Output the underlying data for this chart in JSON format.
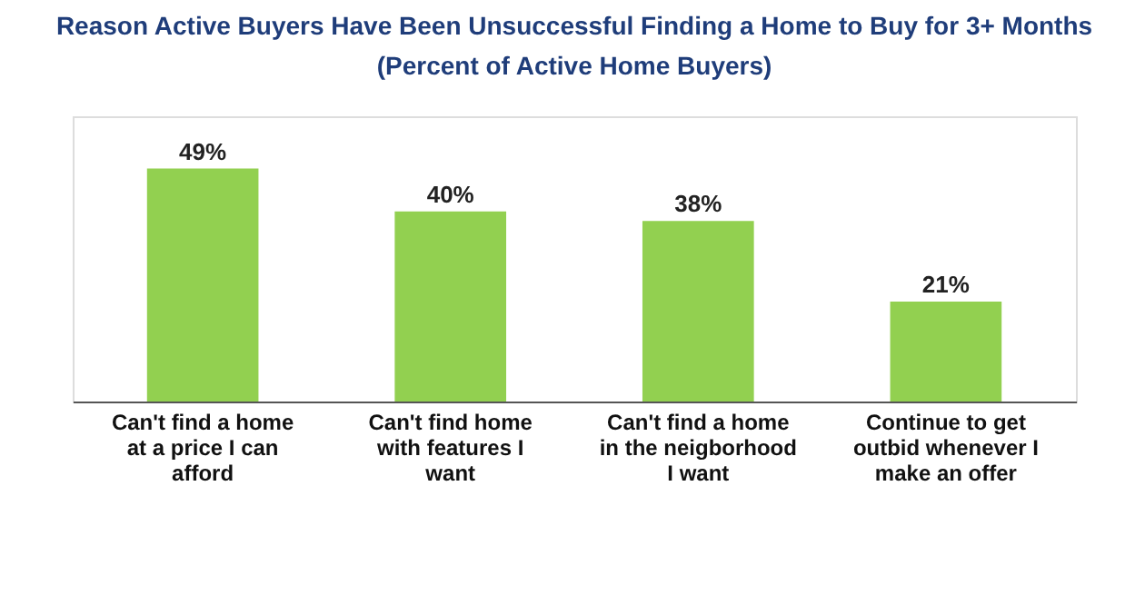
{
  "chart_data": {
    "type": "bar",
    "title": [
      "Reason Active Buyers Have Been Unsuccessful Finding a Home to Buy for 3+ Months",
      "(Percent of Active Home Buyers)"
    ],
    "categories": [
      "Can't find a home\nat a price I can\nafford",
      "Can't find home\nwith features I\nwant",
      "Can't find a home\nin the neigborhood\nI want",
      "Continue to get\noutbid whenever I\nmake an offer"
    ],
    "values": [
      49,
      40,
      38,
      21
    ],
    "value_labels": [
      "49%",
      "40%",
      "38%",
      "21%"
    ],
    "color": "#92d050",
    "ylim": [
      0,
      60
    ],
    "tick_labels": "x"
  }
}
